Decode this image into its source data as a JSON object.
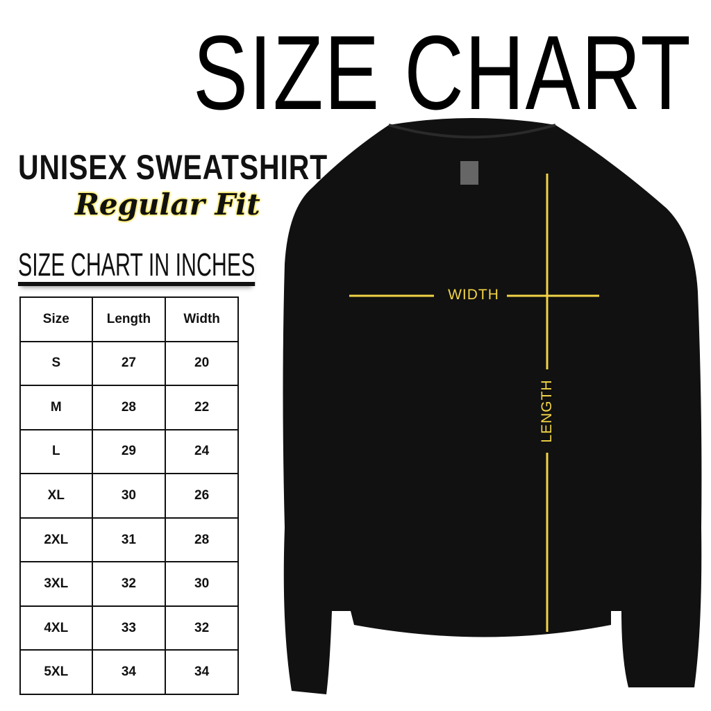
{
  "title": "SIZE CHART",
  "product": "UNISEX SWEATSHIRT",
  "fit": "Regular Fit",
  "table_title": "SIZE CHART IN INCHES",
  "colors": {
    "accent": "#f2d447",
    "shirt": "#111111"
  },
  "measure_labels": {
    "width": "WIDTH",
    "length": "LENGTH"
  },
  "chart_data": {
    "type": "table",
    "columns": [
      "Size",
      "Length",
      "Width"
    ],
    "rows": [
      [
        "S",
        "27",
        "20"
      ],
      [
        "M",
        "28",
        "22"
      ],
      [
        "L",
        "29",
        "24"
      ],
      [
        "XL",
        "30",
        "26"
      ],
      [
        "2XL",
        "31",
        "28"
      ],
      [
        "3XL",
        "32",
        "30"
      ],
      [
        "4XL",
        "33",
        "32"
      ],
      [
        "5XL",
        "34",
        "34"
      ]
    ]
  }
}
